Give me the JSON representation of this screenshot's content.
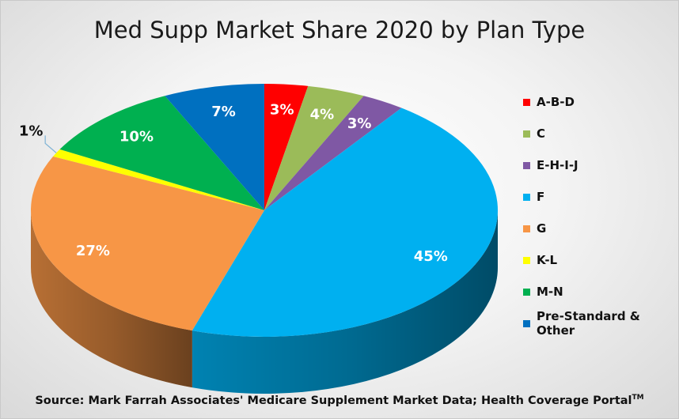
{
  "chart_data": {
    "type": "pie",
    "title": "Med Supp Market Share 2020 by Plan Type",
    "slices": [
      {
        "label": "A-B-D",
        "value": 3,
        "display": "3%",
        "color": "#ff0000"
      },
      {
        "label": "C",
        "value": 4,
        "display": "4%",
        "color": "#9bbb59"
      },
      {
        "label": "E-H-I-J",
        "value": 3,
        "display": "3%",
        "color": "#7f58a4"
      },
      {
        "label": "F",
        "value": 45,
        "display": "45%",
        "color": "#00b0f0"
      },
      {
        "label": "G",
        "value": 27,
        "display": "27%",
        "color": "#f79646"
      },
      {
        "label": "K-L",
        "value": 1,
        "display": "1%",
        "color": "#ffff00"
      },
      {
        "label": "M-N",
        "value": 10,
        "display": "10%",
        "color": "#00b050"
      },
      {
        "label": "Pre-Standard & Other",
        "value": 7,
        "display": "7%",
        "color": "#0070c0"
      }
    ],
    "legend_position": "right"
  },
  "source": {
    "text": "Source:  Mark Farrah Associates' Medicare Supplement Market Data; Health Coverage Portal",
    "trademark": "TM"
  }
}
